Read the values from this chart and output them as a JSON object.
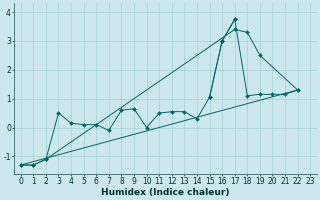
{
  "xlabel": "Humidex (Indice chaleur)",
  "bg_color": "#cce8ec",
  "line_color": "#006666",
  "grid_color": "#99cccc",
  "ylim": [
    -1.6,
    4.3
  ],
  "xlim": [
    -0.5,
    23.5
  ],
  "tick_fontsize": 5.5,
  "label_fontsize": 6.5,
  "line1_x": [
    0,
    1,
    2,
    3,
    4,
    5,
    6,
    7,
    8,
    9,
    10,
    11,
    12,
    13,
    14,
    15,
    16,
    17
  ],
  "line1_y": [
    -1.3,
    -1.3,
    -1.1,
    0.5,
    0.15,
    0.1,
    0.1,
    -0.1,
    0.6,
    0.65,
    0.0,
    0.5,
    0.55,
    0.55,
    0.3,
    1.05,
    3.0,
    3.75
  ],
  "line2_x": [
    0,
    1,
    2,
    17,
    18,
    19,
    22
  ],
  "line2_y": [
    -1.3,
    -1.3,
    -1.1,
    3.4,
    3.3,
    2.5,
    1.3
  ],
  "line3_x": [
    0,
    22
  ],
  "line3_y": [
    -1.3,
    1.3
  ],
  "line4_x": [
    15,
    16,
    17,
    18,
    19,
    20,
    21,
    22
  ],
  "line4_y": [
    1.05,
    3.0,
    3.75,
    1.1,
    1.15,
    1.15,
    1.15,
    1.3
  ]
}
